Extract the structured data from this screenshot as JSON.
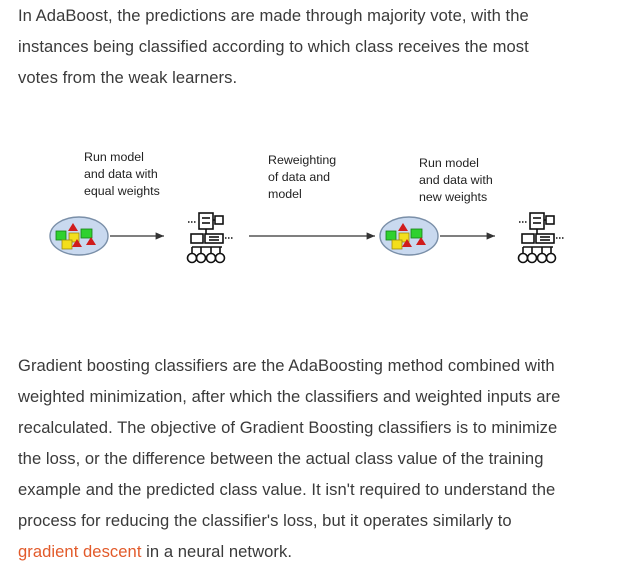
{
  "intro": {
    "lines": [
      "In AdaBoost, the predictions are made through majority vote, with the",
      "instances being classified according to which class receives the most",
      "votes from the weak learners."
    ]
  },
  "diagram": {
    "captions": [
      {
        "lines": [
          "Run model",
          "and data with",
          "equal weights"
        ]
      },
      {
        "lines": [
          "Reweighting",
          "of data and",
          "model"
        ]
      },
      {
        "lines": [
          "Run model",
          "and data with",
          "new weights"
        ]
      }
    ],
    "icons": [
      "data-cluster-icon",
      "robot-model-icon",
      "data-cluster-icon",
      "robot-model-icon"
    ],
    "colors": {
      "ellipse_fill": "#c9d9ef",
      "ellipse_stroke": "#7a8fa8",
      "triangle": "#d01c1c",
      "square_yellow": "#f3de1c",
      "square_green": "#2fd12f",
      "robot": "#111111"
    }
  },
  "body": {
    "lines": [
      "Gradient boosting classifiers are the AdaBoosting method combined with",
      "weighted minimization, after which the classifiers and weighted inputs are",
      "recalculated. The objective of Gradient Boosting classifiers is to minimize",
      "the loss, or the difference between the actual class value of the training",
      "example and the predicted class value. It isn't required to understand the",
      "process for reducing the classifier's loss, but it operates similarly to"
    ],
    "link_text": "gradient descent",
    "after_link": " in a neural network."
  }
}
